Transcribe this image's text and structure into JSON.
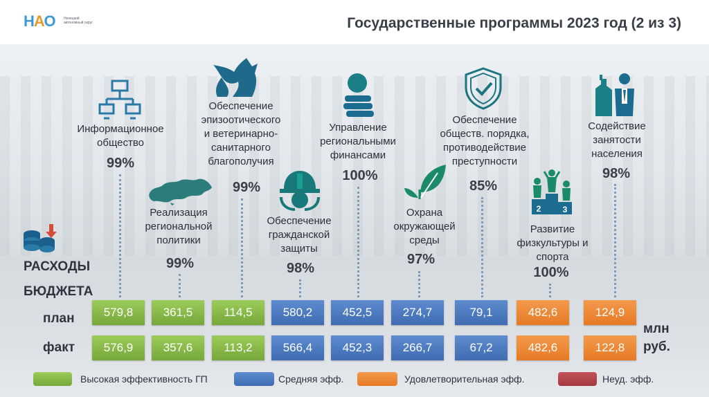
{
  "header": {
    "logo_text": "НАО",
    "logo_subtitle": "Ненецкий автономный округ",
    "title": "Государственные программы 2023 год (2 из 3)"
  },
  "programs": [
    {
      "name": "Информационное общество",
      "percent": "99%",
      "icon": "network-computers-icon",
      "plan": "579,8",
      "fact": "576,9",
      "level": "high"
    },
    {
      "name": "Реализация региональной политики",
      "percent": "99%",
      "icon": "russia-map-icon",
      "plan": "361,5",
      "fact": "357,6",
      "level": "high"
    },
    {
      "name": "Обеспечение эпизоотического и ветеринарно-санитарного благополучия",
      "percent": "99%",
      "icon": "fox-icon",
      "plan": "114,5",
      "fact": "113,2",
      "level": "high"
    },
    {
      "name": "Обеспечение гражданской защиты",
      "percent": "98%",
      "icon": "helmet-icon",
      "plan": "580,2",
      "fact": "566,4",
      "level": "medium"
    },
    {
      "name": "Управление региональными финансами",
      "percent": "100%",
      "icon": "coins-stack-icon",
      "plan": "452,5",
      "fact": "452,3",
      "level": "medium"
    },
    {
      "name": "Охрана окружающей среды",
      "percent": "97%",
      "icon": "leaf-icon",
      "plan": "274,7",
      "fact": "266,7",
      "level": "medium"
    },
    {
      "name": "Обеспечение обществ. порядка, противодействие преступности",
      "percent": "85%",
      "icon": "shield-check-icon",
      "plan": "79,1",
      "fact": "67,2",
      "level": "medium"
    },
    {
      "name": "Развитие физкультуры и спорта",
      "percent": "100%",
      "icon": "podium-icon",
      "plan": "482,6",
      "fact": "482,6",
      "level": "satisfactory"
    },
    {
      "name": "Содействие занятости населения",
      "percent": "98%",
      "icon": "worker-factory-icon",
      "plan": "124,9",
      "fact": "122,8",
      "level": "satisfactory"
    }
  ],
  "labels": {
    "expenses": "РАСХОДЫ",
    "budget": "БЮДЖЕТА",
    "plan": "план",
    "fact": "факт",
    "unit_line1": "млн",
    "unit_line2": "руб."
  },
  "legend": [
    {
      "label": "Высокая эффективность ГП",
      "color": "#86b84a"
    },
    {
      "label": "Средняя эфф.",
      "color": "#4f7dc2"
    },
    {
      "label": "Удовлетворительная эфф.",
      "color": "#ee8a38"
    },
    {
      "label": "Неуд. эфф.",
      "color": "#b4454d"
    }
  ],
  "icons": {
    "budget": "coins-arrow-icon"
  }
}
